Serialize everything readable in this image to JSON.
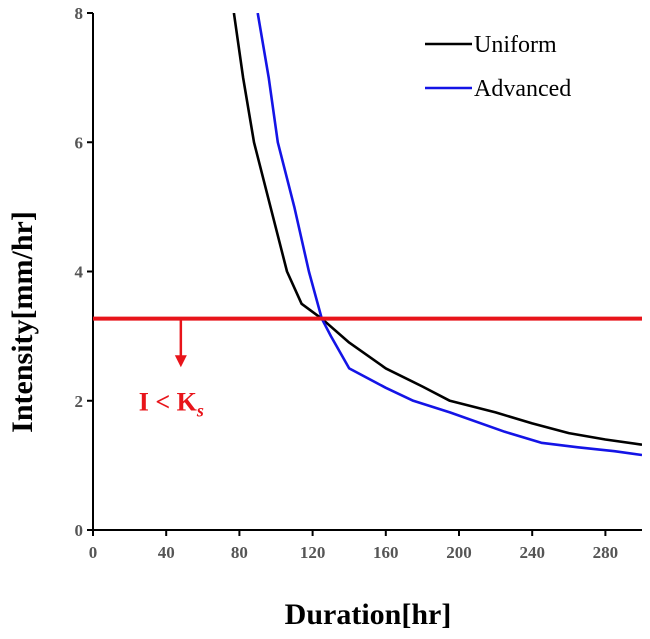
{
  "chart_data": {
    "type": "line",
    "xlabel": "Duration[hr]",
    "ylabel": "Intensity[mm/hr]",
    "xlim": [
      0,
      300
    ],
    "ylim": [
      0,
      8
    ],
    "xticks": [
      0,
      40,
      80,
      120,
      160,
      200,
      240,
      280
    ],
    "yticks": [
      0,
      2,
      4,
      6,
      8
    ],
    "grid": false,
    "legend_position": "top-right",
    "series": [
      {
        "name": "Uniform",
        "color": "#000000",
        "x": [
          77,
          82,
          88,
          97,
          106,
          114,
          125,
          140,
          160,
          180,
          195,
          220,
          240,
          260,
          280,
          300
        ],
        "y": [
          8,
          7,
          6,
          5,
          4,
          3.5,
          3.27,
          2.9,
          2.5,
          2.22,
          2.0,
          1.82,
          1.65,
          1.5,
          1.4,
          1.32
        ]
      },
      {
        "name": "Advanced",
        "color": "#1414e6",
        "x": [
          90,
          96,
          101,
          110,
          118,
          125,
          130,
          140,
          160,
          175,
          195,
          225,
          245,
          265,
          285,
          300
        ],
        "y": [
          8,
          7,
          6,
          5,
          4,
          3.27,
          3.0,
          2.5,
          2.2,
          2.0,
          1.82,
          1.52,
          1.35,
          1.28,
          1.22,
          1.16
        ]
      }
    ],
    "threshold": {
      "y": 3.27,
      "color": "#e8141a",
      "arrow_x": 48,
      "arrow_to_y": 2.55
    },
    "annotation": {
      "label_main": "I < K",
      "label_sub": "s",
      "x": 25,
      "y": 1.85
    }
  }
}
